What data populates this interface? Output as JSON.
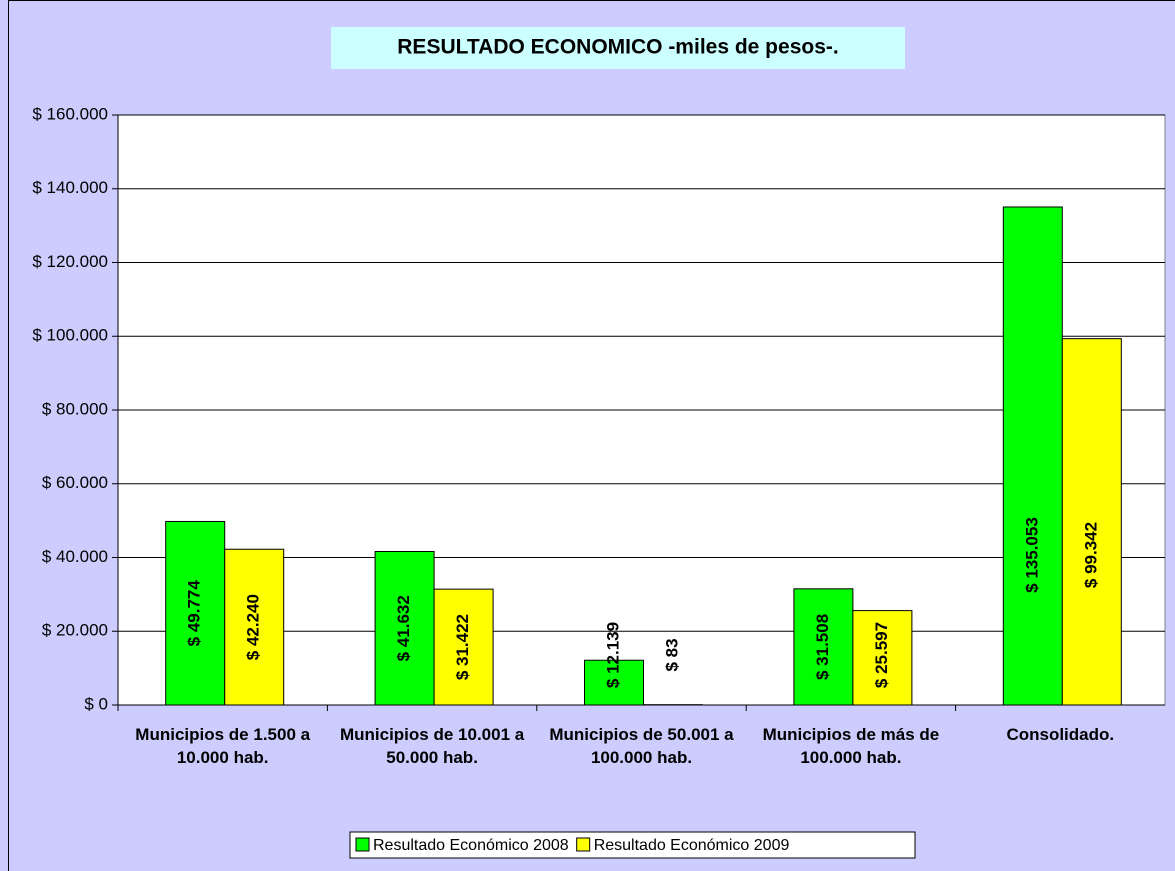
{
  "chart_data": {
    "type": "bar",
    "title": "RESULTADO ECONOMICO -miles de pesos-.",
    "categories": [
      "Municipios de 1.500 a 10.000 hab.",
      "Municipios de 10.001 a 50.000 hab.",
      "Municipios de 50.001 a 100.000 hab.",
      "Municipios de más de 100.000 hab.",
      "Consolidado."
    ],
    "series": [
      {
        "name": "Resultado Económico 2008",
        "color": "#00ff00",
        "values": [
          49774,
          41632,
          12139,
          31508,
          135053
        ],
        "value_labels": [
          "$ 49.774",
          "$ 41.632",
          "$ 12.139",
          "$ 31.508",
          "$ 135.053"
        ]
      },
      {
        "name": "Resultado Económico 2009",
        "color": "#ffff00",
        "values": [
          42240,
          31422,
          83,
          25597,
          99342
        ],
        "value_labels": [
          "$ 42.240",
          "$ 31.422",
          "$ 83",
          "$ 25.597",
          "$ 99.342"
        ]
      }
    ],
    "ylim": [
      0,
      160000
    ],
    "yticks": [
      {
        "value": 0,
        "label": "$ 0"
      },
      {
        "value": 20000,
        "label": "$ 20.000"
      },
      {
        "value": 40000,
        "label": "$ 40.000"
      },
      {
        "value": 60000,
        "label": "$ 60.000"
      },
      {
        "value": 80000,
        "label": "$ 80.000"
      },
      {
        "value": 100000,
        "label": "$ 100.000"
      },
      {
        "value": 120000,
        "label": "$ 120.000"
      },
      {
        "value": 140000,
        "label": "$ 140.000"
      },
      {
        "value": 160000,
        "label": "$ 160.000"
      }
    ],
    "grid": true,
    "legend": "bottom"
  }
}
